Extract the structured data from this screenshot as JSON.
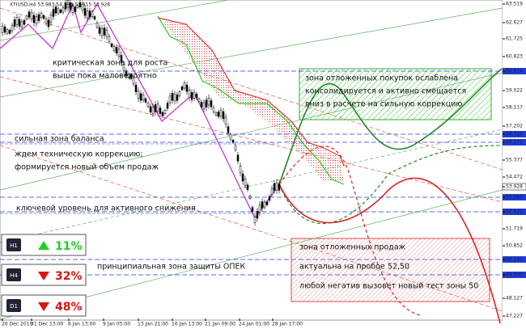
{
  "header": "XTIUSD,H4  53.983 54.194 53.915 53.928",
  "price_axis": [
    "63.519",
    "62.627",
    "61.725",
    "60.823",
    "60.014",
    "59.022",
    "58.117",
    "57.202",
    "56.724",
    "56.271",
    "55.377",
    "54.472",
    "53.928",
    "53.563",
    "52.621",
    "51.719",
    "50.852",
    "50.141",
    "49.300",
    "48.127",
    "47.227"
  ],
  "time_axis": [
    "26 Dec 2019",
    "31 Dec 13:00",
    "6 Jan 13:00",
    "9 Jan 05:00",
    "13 Jan 21:00",
    "16 Jan 13:00",
    "21 Jan 09:00",
    "24 Jan 01:00",
    "28 Jan 17:00"
  ],
  "annotations": [
    {
      "lines": [
        "критическая зона для роста",
        "выше пока маловероятно"
      ]
    },
    {
      "lines": [
        "зона отложенных покупок ослаблена",
        "консолидируется и активно смещается",
        "вниз в расчете на сильную коррекцию"
      ]
    },
    {
      "lines": [
        "сильная зона баланса"
      ]
    },
    {
      "lines": [
        "ждем техническую коррекцию;",
        "формируется новый объем продаж"
      ]
    },
    {
      "lines": [
        "ключевой уровень для активного снижения"
      ]
    },
    {
      "lines": [
        "зона отложенных продаж",
        "актуальна на пробое 52,50",
        "любой негатив вызовет новый тест зоны 50"
      ]
    },
    {
      "lines": [
        "принципиальная зона защиты ОПЕК"
      ]
    }
  ],
  "indicators": [
    {
      "timeframe": "H1",
      "value": "11%",
      "direction": "up"
    },
    {
      "timeframe": "H4",
      "value": "32%",
      "direction": "down"
    },
    {
      "timeframe": "D1",
      "value": "48%",
      "direction": "down"
    }
  ]
}
